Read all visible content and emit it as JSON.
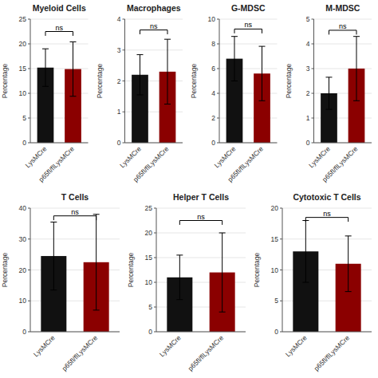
{
  "chart_data": [
    {
      "type": "bar",
      "title": "Myeloid Cells",
      "categories": [
        "LysMCre",
        "p65fl/flLysMCre"
      ],
      "values": [
        15.2,
        14.9
      ],
      "errors": [
        3.8,
        5.5
      ],
      "colors": [
        "#111111",
        "#8B0000"
      ],
      "ylabel": "Percentage",
      "ylim": [
        0,
        25
      ],
      "yticks": [
        0,
        5,
        10,
        15,
        20,
        25
      ],
      "annotations": [
        {
          "text": "ns",
          "y": 22.5
        }
      ]
    },
    {
      "type": "bar",
      "title": "Macrophages",
      "categories": [
        "LysMCre",
        "p65fl/flLysMCre"
      ],
      "values": [
        2.2,
        2.3
      ],
      "errors": [
        0.65,
        1.05
      ],
      "colors": [
        "#111111",
        "#8B0000"
      ],
      "ylabel": "Percentage",
      "ylim": [
        0,
        4
      ],
      "yticks": [
        0,
        1,
        2,
        3,
        4
      ],
      "annotations": [
        {
          "text": "ns",
          "y": 3.65
        }
      ]
    },
    {
      "type": "bar",
      "title": "G-MDSC",
      "categories": [
        "LysMCre",
        "p65fl/flLysMCre"
      ],
      "values": [
        6.8,
        5.6
      ],
      "errors": [
        1.8,
        2.2
      ],
      "colors": [
        "#111111",
        "#8B0000"
      ],
      "ylabel": "Percentage",
      "ylim": [
        0,
        10
      ],
      "yticks": [
        0,
        2,
        4,
        6,
        8,
        10
      ],
      "annotations": [
        {
          "text": "ns",
          "y": 9.2
        }
      ]
    },
    {
      "type": "bar",
      "title": "M-MDSC",
      "categories": [
        "LysMCre",
        "p65fl/flLysMCre"
      ],
      "values": [
        2.0,
        3.0
      ],
      "errors": [
        0.65,
        1.3
      ],
      "colors": [
        "#111111",
        "#8B0000"
      ],
      "ylabel": "Percentage",
      "ylim": [
        0,
        5
      ],
      "yticks": [
        0,
        1,
        2,
        3,
        4,
        5
      ],
      "annotations": [
        {
          "text": "ns",
          "y": 4.55
        }
      ]
    },
    {
      "type": "bar",
      "title": "T Cells",
      "categories": [
        "LysMCre",
        "p65fl/flLysMCre"
      ],
      "values": [
        24.5,
        22.5
      ],
      "errors": [
        11.0,
        15.5
      ],
      "colors": [
        "#111111",
        "#8B0000"
      ],
      "ylabel": "Percentage",
      "ylim": [
        0,
        40
      ],
      "yticks": [
        0,
        10,
        20,
        30,
        40
      ],
      "annotations": [
        {
          "text": "ns",
          "y": 37.5
        }
      ]
    },
    {
      "type": "bar",
      "title": "Helper T Cells",
      "categories": [
        "LysMCre",
        "p65fl/flLysMCre"
      ],
      "values": [
        11.0,
        12.0
      ],
      "errors": [
        4.5,
        8.0
      ],
      "colors": [
        "#111111",
        "#8B0000"
      ],
      "ylabel": "Percentage",
      "ylim": [
        0,
        25
      ],
      "yticks": [
        0,
        5,
        10,
        15,
        20,
        25
      ],
      "annotations": [
        {
          "text": "ns",
          "y": 22.5
        }
      ]
    },
    {
      "type": "bar",
      "title": "Cytotoxic T Cells",
      "categories": [
        "LysMCre",
        "p65fl/flLysMCre"
      ],
      "values": [
        13.0,
        11.0
      ],
      "errors": [
        5.0,
        4.5
      ],
      "colors": [
        "#111111",
        "#8B0000"
      ],
      "ylabel": "Percentage",
      "ylim": [
        0,
        20
      ],
      "yticks": [
        0,
        5,
        10,
        15,
        20
      ],
      "annotations": [
        {
          "text": "ns",
          "y": 18.5
        }
      ]
    }
  ]
}
